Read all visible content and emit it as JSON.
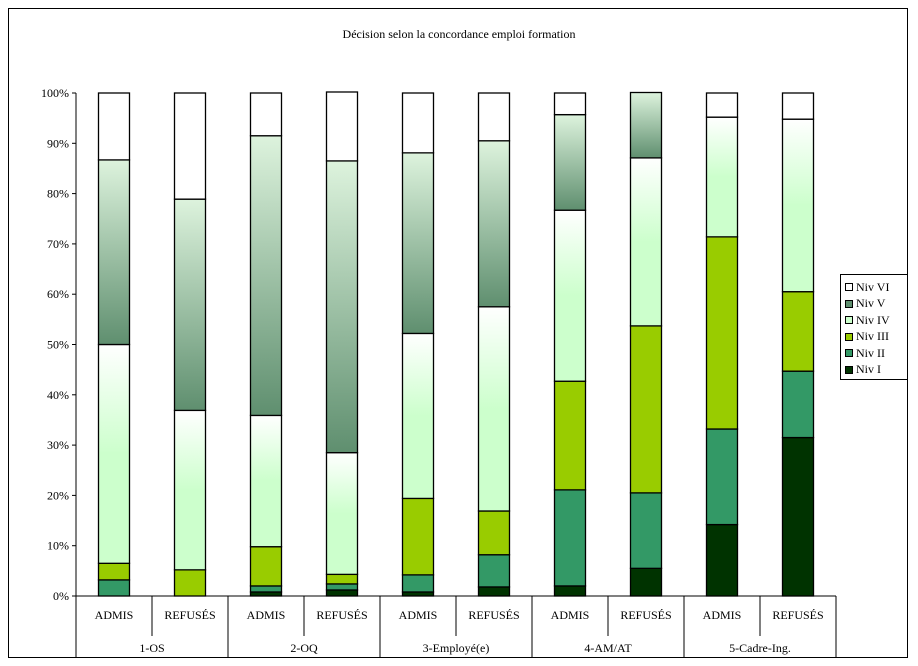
{
  "chart_data": {
    "type": "bar",
    "stacked": true,
    "normalized": true,
    "title": "Décision selon la concordance emploi formation",
    "groups": [
      "1-OS",
      "2-OQ",
      "3-Employé(e)",
      "4-AM/AT",
      "5-Cadre-Ing."
    ],
    "categories": [
      "ADMIS",
      "REFUSÉS",
      "ADMIS",
      "REFUSÉS",
      "ADMIS",
      "REFUSÉS",
      "ADMIS",
      "REFUSÉS",
      "ADMIS",
      "REFUSÉS"
    ],
    "y_ticks": [
      "0%",
      "10%",
      "20%",
      "30%",
      "40%",
      "50%",
      "60%",
      "70%",
      "80%",
      "90%",
      "100%"
    ],
    "ylim": [
      0,
      100
    ],
    "legend_position": "right",
    "series": [
      {
        "name": "Niv I",
        "color": "#003300",
        "values": [
          0,
          0,
          0.8,
          1.2,
          0.8,
          1.8,
          2,
          5.5,
          14.2,
          31.5
        ]
      },
      {
        "name": "Niv II",
        "color": "#339966",
        "values": [
          3.2,
          0,
          1.2,
          1.2,
          3.4,
          6.4,
          19.1,
          15,
          19,
          13.2
        ]
      },
      {
        "name": "Niv III",
        "color": "#99CC00",
        "values": [
          3.3,
          5.2,
          7.8,
          1.9,
          15.2,
          8.7,
          21.6,
          33.2,
          38.2,
          15.8
        ]
      },
      {
        "name": "Niv IV",
        "color": "#CCFFCC",
        "values": [
          43.5,
          31.7,
          26.1,
          24.2,
          32.8,
          40.6,
          34,
          33.4,
          23.8,
          34.3
        ]
      },
      {
        "name": "Niv V",
        "color": "#5F8F6F",
        "values": [
          36.7,
          42,
          55.6,
          58,
          35.9,
          33,
          19,
          13,
          0,
          0
        ]
      },
      {
        "name": "Niv VI",
        "color": "#FFFFFF",
        "values": [
          13.3,
          21.1,
          8.5,
          13.7,
          11.9,
          9.5,
          4.3,
          0,
          4.8,
          5.2
        ]
      }
    ]
  }
}
